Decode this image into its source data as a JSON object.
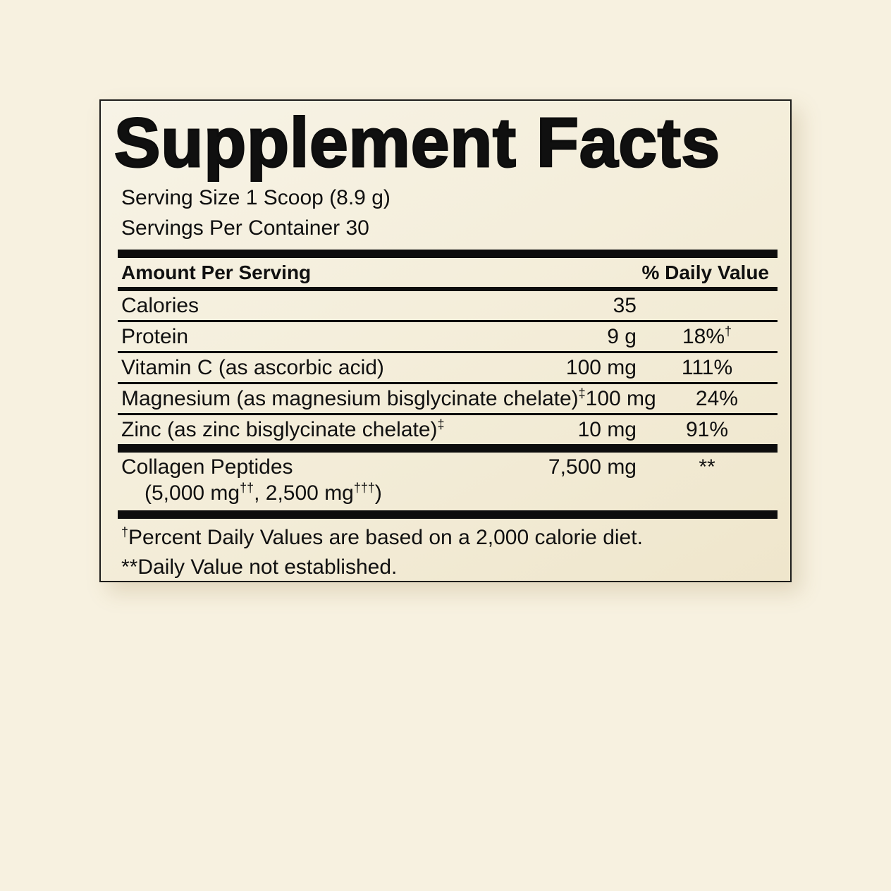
{
  "colors": {
    "page_background": "#f7f1e0",
    "panel_background": "#f4eedb",
    "text": "#101010",
    "divider": "#0d0d0d",
    "panel_border": "#1d1d1b"
  },
  "panel": {
    "title": "Supplement Facts",
    "serving_size": "Serving Size 1 Scoop (8.9 g)",
    "servings_per_container": "Servings Per Container 30",
    "header": {
      "amount_label": "Amount Per Serving",
      "daily_value_label": "% Daily Value"
    },
    "rows": [
      {
        "name": [
          {
            "t": "Calories"
          }
        ],
        "amount": "35",
        "dv": [],
        "rule_after": "thin"
      },
      {
        "name": [
          {
            "t": "Protein"
          }
        ],
        "amount": "9 g",
        "dv": [
          {
            "t": "18%"
          },
          {
            "t": "†",
            "sup": true
          }
        ],
        "rule_after": "thin"
      },
      {
        "name": [
          {
            "t": "Vitamin C (as ascorbic acid)"
          }
        ],
        "amount": "100 mg",
        "dv": [
          {
            "t": "111%"
          }
        ],
        "rule_after": "thin"
      },
      {
        "name": [
          {
            "t": "Magnesium (as magnesium bisglycinate chelate)"
          },
          {
            "t": "‡",
            "sup": true
          }
        ],
        "amount": "100 mg",
        "dv": [
          {
            "t": "24%"
          }
        ],
        "rule_after": "thin"
      },
      {
        "name": [
          {
            "t": "Zinc (as zinc bisglycinate chelate)"
          },
          {
            "t": "‡",
            "sup": true
          }
        ],
        "amount": "10 mg",
        "dv": [
          {
            "t": "91%"
          }
        ],
        "rule_after": "thick"
      },
      {
        "name": [
          {
            "t": "Collagen Peptides"
          }
        ],
        "amount": "7,500 mg",
        "dv": [
          {
            "t": "**"
          }
        ],
        "sub": [
          {
            "t": "(5,000 mg"
          },
          {
            "t": "††",
            "sup": true
          },
          {
            "t": ", 2,500 mg"
          },
          {
            "t": "†††",
            "sup": true
          },
          {
            "t": ")"
          }
        ],
        "rule_after": "thick"
      }
    ],
    "footnotes": [
      [
        {
          "t": "†",
          "sup": true
        },
        {
          "t": "Percent Daily Values are based on a 2,000 calorie diet."
        }
      ],
      [
        {
          "t": "**"
        },
        {
          "t": "Daily Value not established."
        }
      ]
    ]
  }
}
